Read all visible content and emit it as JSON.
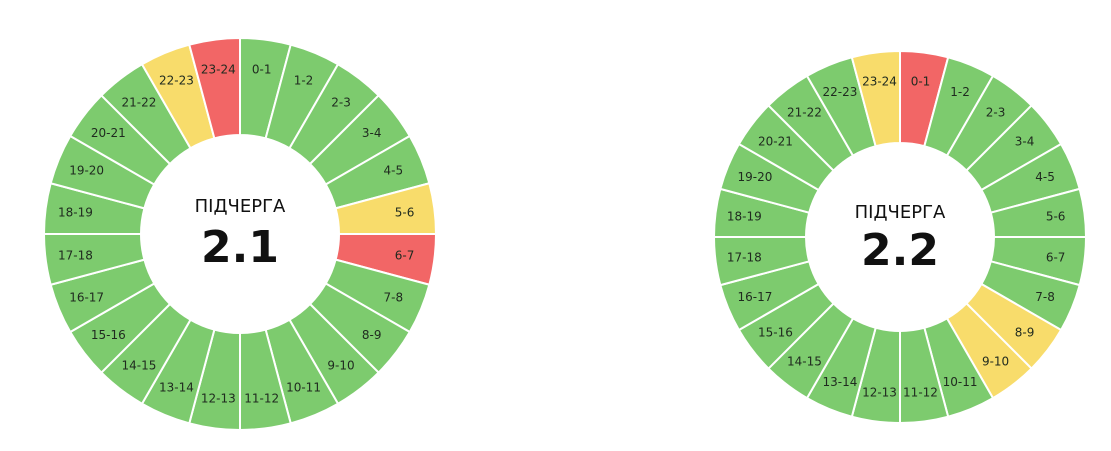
{
  "colors": {
    "green": "#7dcb6e",
    "yellow": "#f8dc6b",
    "red": "#f26666",
    "stroke": "#ffffff"
  },
  "schedules": [
    {
      "title": "ПІДЧЕРГА",
      "value": "2.1",
      "segments": [
        {
          "label": "0-1",
          "status": "green"
        },
        {
          "label": "1-2",
          "status": "green"
        },
        {
          "label": "2-3",
          "status": "green"
        },
        {
          "label": "3-4",
          "status": "green"
        },
        {
          "label": "4-5",
          "status": "green"
        },
        {
          "label": "5-6",
          "status": "yellow"
        },
        {
          "label": "6-7",
          "status": "red"
        },
        {
          "label": "7-8",
          "status": "green"
        },
        {
          "label": "8-9",
          "status": "green"
        },
        {
          "label": "9-10",
          "status": "green"
        },
        {
          "label": "10-11",
          "status": "green"
        },
        {
          "label": "11-12",
          "status": "green"
        },
        {
          "label": "12-13",
          "status": "green"
        },
        {
          "label": "13-14",
          "status": "green"
        },
        {
          "label": "14-15",
          "status": "green"
        },
        {
          "label": "15-16",
          "status": "green"
        },
        {
          "label": "16-17",
          "status": "green"
        },
        {
          "label": "17-18",
          "status": "green"
        },
        {
          "label": "18-19",
          "status": "green"
        },
        {
          "label": "19-20",
          "status": "green"
        },
        {
          "label": "20-21",
          "status": "green"
        },
        {
          "label": "21-22",
          "status": "green"
        },
        {
          "label": "22-23",
          "status": "yellow"
        },
        {
          "label": "23-24",
          "status": "red"
        }
      ]
    },
    {
      "title": "ПІДЧЕРГА",
      "value": "2.2",
      "segments": [
        {
          "label": "0-1",
          "status": "red"
        },
        {
          "label": "1-2",
          "status": "green"
        },
        {
          "label": "2-3",
          "status": "green"
        },
        {
          "label": "3-4",
          "status": "green"
        },
        {
          "label": "4-5",
          "status": "green"
        },
        {
          "label": "5-6",
          "status": "green"
        },
        {
          "label": "6-7",
          "status": "green"
        },
        {
          "label": "7-8",
          "status": "green"
        },
        {
          "label": "8-9",
          "status": "yellow"
        },
        {
          "label": "9-10",
          "status": "yellow"
        },
        {
          "label": "10-11",
          "status": "green"
        },
        {
          "label": "11-12",
          "status": "green"
        },
        {
          "label": "12-13",
          "status": "green"
        },
        {
          "label": "13-14",
          "status": "green"
        },
        {
          "label": "14-15",
          "status": "green"
        },
        {
          "label": "15-16",
          "status": "green"
        },
        {
          "label": "16-17",
          "status": "green"
        },
        {
          "label": "17-18",
          "status": "green"
        },
        {
          "label": "18-19",
          "status": "green"
        },
        {
          "label": "19-20",
          "status": "green"
        },
        {
          "label": "20-21",
          "status": "green"
        },
        {
          "label": "21-22",
          "status": "green"
        },
        {
          "label": "22-23",
          "status": "green"
        },
        {
          "label": "23-24",
          "status": "yellow"
        }
      ]
    }
  ]
}
